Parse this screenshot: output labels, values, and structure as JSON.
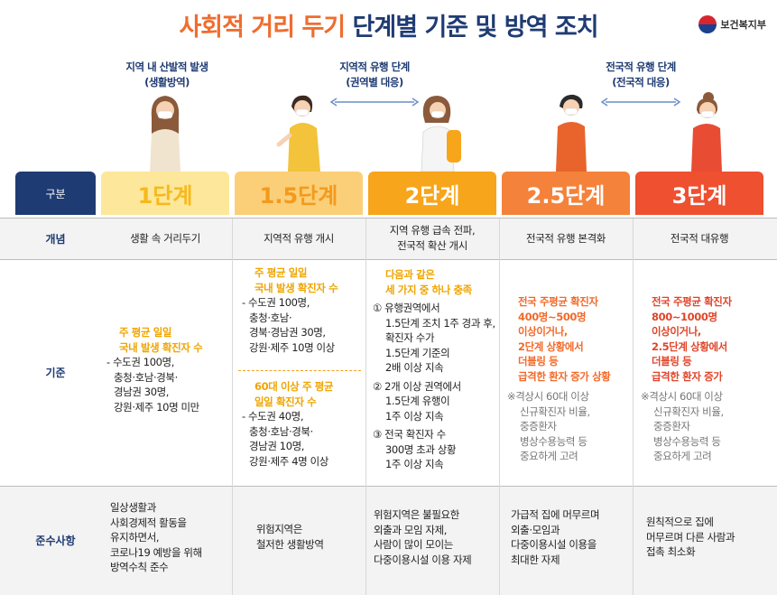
{
  "title": {
    "part1": "사회적 거리 두기",
    "part2": "단계별 기준 및 방역 조치"
  },
  "ministry": "보건복지부",
  "phases": [
    {
      "line1": "지역 내 산발적 발생",
      "line2": "(생활방역)"
    },
    {
      "line1": "지역적 유행 단계",
      "line2": "(권역별 대응)"
    },
    {
      "line1": "전국적 유행 단계",
      "line2": "(전국적 대응)"
    }
  ],
  "row_labels": {
    "header": "구분",
    "concept": "개념",
    "criteria": "기준",
    "compliance": "준수사항"
  },
  "columns": [
    {
      "stage": "1단계",
      "color": "#f6b91c",
      "head_bg": "#fde79a",
      "concept": "생활 속 거리두기",
      "criteria_hl": [
        "주 평균 일일",
        "국내 발생 확진자 수"
      ],
      "criteria": [
        "- 수도권 100명,",
        "충청·호남·경북·",
        "경남권 30명,",
        "강원·제주 10명 미만"
      ],
      "compliance": [
        "일상생활과",
        "사회경제적 활동을",
        "유지하면서,",
        "코로나19 예방을 위해",
        "방역수칙 준수"
      ]
    },
    {
      "stage": "1.5단계",
      "color": "#f39a1d",
      "head_bg": "#fbcf77",
      "concept": "지역적 유행 개시",
      "criteria_hl": [
        "주 평균 일일",
        "국내 발생 확진자 수"
      ],
      "criteria": [
        "- 수도권 100명,",
        "충청·호남·",
        "경북·경남권 30명,",
        "강원·제주 10명 이상"
      ],
      "criteria2_hl": [
        "60대 이상 주 평균",
        "일일 확진자 수"
      ],
      "criteria2": [
        "- 수도권 40명,",
        "충청·호남·경북·",
        "경남권 10명,",
        "강원·제주 4명 이상"
      ],
      "compliance": [
        "위험지역은",
        "철저한 생활방역"
      ]
    },
    {
      "stage": "2단계",
      "color": "#ffffff",
      "head_bg": "#f7a51a",
      "concept": [
        "지역 유행 급속 전파,",
        "전국적 확산 개시"
      ],
      "criteria_hl": [
        "다음과 같은",
        "세 가지 중 하나 충족"
      ],
      "criteria": [
        [
          "① 유행권역에서",
          "1.5단계 조치 1주 경과 후,",
          "확진자 수가",
          "1.5단계 기준의",
          "2배 이상 지속"
        ],
        [
          "② 2개 이상 권역에서",
          "1.5단계 유행이",
          "1주 이상 지속"
        ],
        [
          "③ 전국 확진자 수",
          "300명 초과 상황",
          "1주 이상 지속"
        ]
      ],
      "compliance": [
        "위험지역은 불필요한",
        "외출과 모임 자제,",
        "사람이 많이 모이는",
        "다중이용시설 이용 자제"
      ]
    },
    {
      "stage": "2.5단계",
      "color": "#ffffff",
      "head_bg": "#f5823a",
      "concept": "전국적 유행 본격화",
      "criteria_hl": [
        "전국 주평균 확진자",
        "400명~500명",
        "이상이거나,",
        "2단계 상황에서",
        "더블링 등",
        "급격한 환자 증가 상황"
      ],
      "note": [
        "※격상시 60대 이상",
        "신규확진자 비율,",
        "중증환자",
        "병상수용능력 등",
        "중요하게 고려"
      ],
      "compliance": [
        "가급적 집에 머무르며",
        "외출·모임과",
        "다중이용시설 이용을",
        "최대한 자제"
      ]
    },
    {
      "stage": "3단계",
      "color": "#ffffff",
      "head_bg": "#ee5030",
      "concept": "전국적 대유행",
      "criteria_hl": [
        "전국 주평균 확진자",
        "800~1000명",
        "이상이거나,",
        "2.5단계 상황에서",
        "더블링 등",
        "급격한 환자 증가"
      ],
      "note": [
        "※격상시 60대 이상",
        "신규확진자 비율,",
        "중증환자",
        "병상수용능력 등",
        "중요하게 고려"
      ],
      "compliance": [
        "원칙적으로 집에",
        "머무르며 다른 사람과",
        "접촉 최소화"
      ]
    }
  ],
  "colors": {
    "navy": "#1f3b73",
    "orange_text": "#ef6d2f",
    "red_text": "#e0452a",
    "grid_band": "#f2f2f2"
  }
}
